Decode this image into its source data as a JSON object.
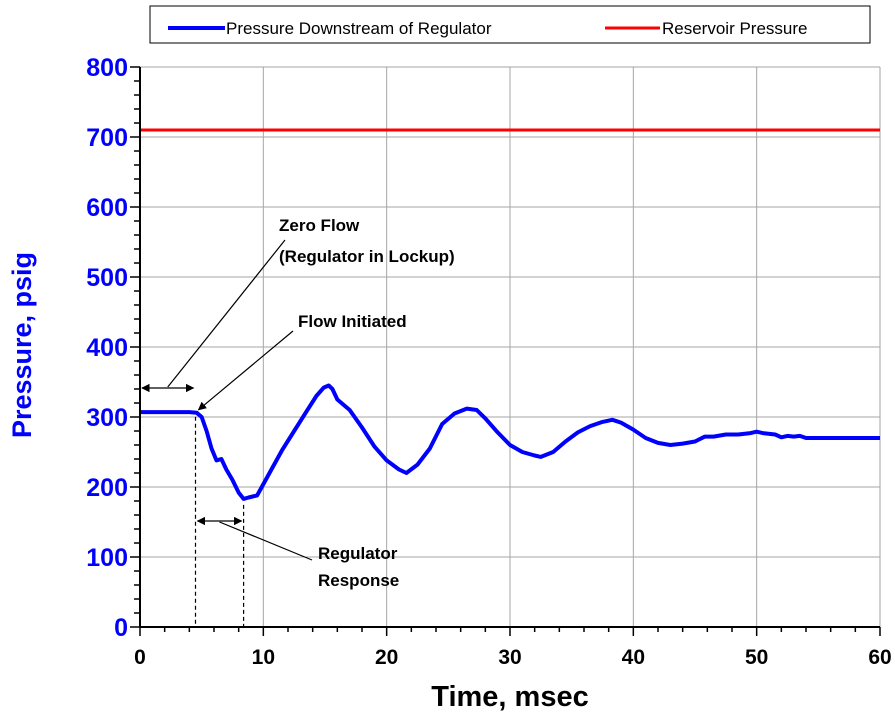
{
  "chart_data": {
    "type": "line",
    "xlabel": "Time, msec",
    "ylabel": "Pressure, psig",
    "xlim": [
      0,
      60
    ],
    "ylim": [
      0,
      800
    ],
    "x_ticks": [
      0,
      10,
      20,
      30,
      40,
      50,
      60
    ],
    "y_ticks": [
      0,
      100,
      200,
      300,
      400,
      500,
      600,
      700,
      800
    ],
    "grid": true,
    "legend_position": "top",
    "series": [
      {
        "name": "Pressure Downstream of Regulator",
        "color": "#0000ff",
        "x": [
          0,
          1,
          2,
          3,
          4,
          4.6,
          5,
          5.4,
          5.8,
          6.2,
          6.6,
          7,
          7.5,
          8,
          8.4,
          8.8,
          9.5,
          10.5,
          11.5,
          12.5,
          13.5,
          14.3,
          14.9,
          15.3,
          15.6,
          16,
          17,
          18,
          19,
          20,
          21,
          21.6,
          22.5,
          23.5,
          24.5,
          25.5,
          26.5,
          27.3,
          28,
          29,
          30,
          31,
          32,
          32.5,
          33.5,
          34.5,
          35.5,
          36.5,
          37.5,
          38.3,
          39,
          40,
          41,
          42,
          43,
          44,
          45,
          45.8,
          46.5,
          47.5,
          48.5,
          49.5,
          50,
          50.5,
          51.5,
          52,
          52.5,
          53,
          53.5,
          54,
          55,
          56,
          57,
          58,
          59,
          60
        ],
        "y": [
          307,
          307,
          307,
          307,
          307,
          306,
          300,
          280,
          255,
          238,
          240,
          225,
          210,
          192,
          183,
          185,
          188,
          220,
          252,
          280,
          308,
          330,
          342,
          345,
          340,
          325,
          310,
          285,
          258,
          238,
          225,
          220,
          232,
          255,
          290,
          305,
          312,
          310,
          298,
          278,
          260,
          250,
          245,
          243,
          250,
          265,
          278,
          287,
          293,
          296,
          292,
          282,
          270,
          263,
          260,
          262,
          265,
          272,
          272,
          275,
          275,
          277,
          279,
          277,
          275,
          271,
          273,
          272,
          273,
          270,
          270,
          270,
          270,
          270,
          270,
          270
        ]
      },
      {
        "name": "Reservoir Pressure",
        "color": "#ff0000",
        "x": [
          0,
          60
        ],
        "y": [
          710,
          710
        ]
      }
    ],
    "annotations": [
      {
        "lines": [
          "Zero Flow",
          "(Regulator in Lockup)"
        ]
      },
      {
        "lines": [
          "Flow Initiated"
        ]
      },
      {
        "lines": [
          "Regulator",
          "Response"
        ]
      }
    ],
    "markers": {
      "flow_initiated_time": 4.5,
      "response_end_time": 8.4
    }
  }
}
